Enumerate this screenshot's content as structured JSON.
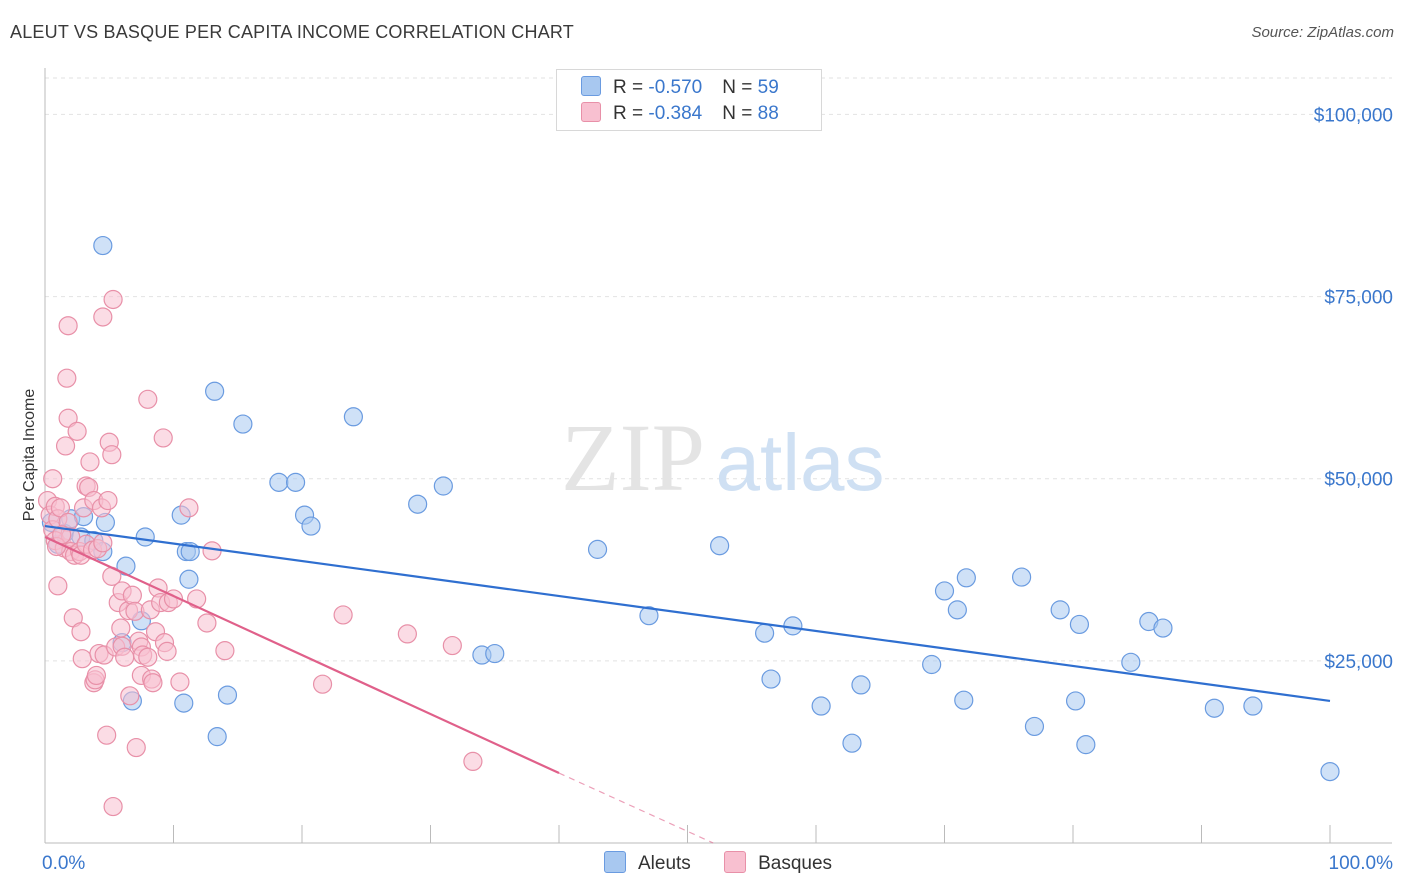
{
  "header": {
    "title": "ALEUT VS BASQUE PER CAPITA INCOME CORRELATION CHART",
    "source": "Source: ZipAtlas.com"
  },
  "watermark": {
    "zip": "ZIP",
    "atlas": "atlas"
  },
  "legend": {
    "rows": [
      {
        "r_label": "R = ",
        "r_value": "-0.570",
        "n_label": "N = ",
        "n_value": "59",
        "color": "#a8c8f0",
        "border": "#6a9be0"
      },
      {
        "r_label": "R = ",
        "r_value": "-0.384",
        "n_label": "N = ",
        "n_value": "88",
        "color": "#f8c0d0",
        "border": "#e890a8"
      }
    ]
  },
  "bottom_legend": [
    {
      "label": "Aleuts",
      "color": "#a8c8f0",
      "border": "#6a9be0"
    },
    {
      "label": "Basques",
      "color": "#f8c0d0",
      "border": "#e890a8"
    }
  ],
  "chart_data": {
    "type": "scatter",
    "ylabel": "Per Capita Income",
    "xlim": [
      0,
      100
    ],
    "ylim": [
      0,
      105000
    ],
    "x_tick_labels": [
      "0.0%",
      "100.0%"
    ],
    "y_ticks": [
      {
        "value": 25000,
        "label": "$25,000"
      },
      {
        "value": 50000,
        "label": "$50,000"
      },
      {
        "value": 75000,
        "label": "$75,000"
      },
      {
        "value": 100000,
        "label": "$100,000"
      }
    ],
    "grid": true,
    "series": [
      {
        "name": "Aleuts",
        "color": "#a8c8f0",
        "stroke": "#6a9be0",
        "line_color": "#2f6fd0",
        "trend": {
          "x0": 0,
          "y0": 43500,
          "x1": 100,
          "y1": 19500
        },
        "points": [
          [
            0.5,
            44000
          ],
          [
            1.0,
            41000
          ],
          [
            1.5,
            42500
          ],
          [
            2.0,
            44500
          ],
          [
            2.8,
            42000
          ],
          [
            3.0,
            44800
          ],
          [
            3.8,
            41500
          ],
          [
            4.5,
            40000
          ],
          [
            4.5,
            82000
          ],
          [
            4.7,
            44000
          ],
          [
            6.0,
            27500
          ],
          [
            6.3,
            38000
          ],
          [
            6.8,
            19500
          ],
          [
            7.5,
            30500
          ],
          [
            7.8,
            42000
          ],
          [
            10.6,
            45000
          ],
          [
            10.8,
            19200
          ],
          [
            11.0,
            40000
          ],
          [
            11.3,
            40000
          ],
          [
            11.2,
            36200
          ],
          [
            13.2,
            62000
          ],
          [
            14.2,
            20300
          ],
          [
            13.4,
            14600
          ],
          [
            15.4,
            57500
          ],
          [
            18.2,
            49500
          ],
          [
            19.5,
            49500
          ],
          [
            20.2,
            45000
          ],
          [
            20.7,
            43500
          ],
          [
            24.0,
            58500
          ],
          [
            29.0,
            46500
          ],
          [
            31.0,
            49000
          ],
          [
            34.0,
            25800
          ],
          [
            35.0,
            26000
          ],
          [
            43.0,
            40300
          ],
          [
            47.0,
            31200
          ],
          [
            52.5,
            40800
          ],
          [
            56.0,
            28800
          ],
          [
            56.5,
            22500
          ],
          [
            58.2,
            29800
          ],
          [
            60.4,
            18800
          ],
          [
            62.8,
            13700
          ],
          [
            63.5,
            21700
          ],
          [
            69.0,
            24500
          ],
          [
            70.0,
            34600
          ],
          [
            71.0,
            32000
          ],
          [
            71.5,
            19600
          ],
          [
            71.7,
            36400
          ],
          [
            76.0,
            36500
          ],
          [
            77.0,
            16000
          ],
          [
            79.0,
            32000
          ],
          [
            80.2,
            19500
          ],
          [
            80.5,
            30000
          ],
          [
            81.0,
            13500
          ],
          [
            84.5,
            24800
          ],
          [
            85.9,
            30400
          ],
          [
            87.0,
            29500
          ],
          [
            91.0,
            18500
          ],
          [
            94.0,
            18800
          ],
          [
            100.0,
            9800
          ]
        ]
      },
      {
        "name": "Basques",
        "color": "#f8c0d0",
        "stroke": "#e890a8",
        "line_color": "#e0608a",
        "trend": {
          "x0": 0,
          "y0": 42000,
          "x1": 40,
          "y1": 9600
        },
        "trend_dashed": {
          "x0": 40,
          "y0": 9600,
          "x1": 52,
          "y1": 0
        },
        "points": [
          [
            0.2,
            47000
          ],
          [
            0.4,
            45000
          ],
          [
            0.6,
            43000
          ],
          [
            0.6,
            50000
          ],
          [
            0.8,
            46200
          ],
          [
            0.8,
            41500
          ],
          [
            1.0,
            35300
          ],
          [
            1.0,
            44500
          ],
          [
            1.2,
            46000
          ],
          [
            1.5,
            40500
          ],
          [
            1.6,
            54500
          ],
          [
            1.7,
            63800
          ],
          [
            1.8,
            58300
          ],
          [
            1.8,
            71000
          ],
          [
            1.8,
            44000
          ],
          [
            2.0,
            42000
          ],
          [
            2.0,
            40000
          ],
          [
            2.2,
            30900
          ],
          [
            2.3,
            39500
          ],
          [
            2.5,
            56500
          ],
          [
            2.7,
            40000
          ],
          [
            2.8,
            39500
          ],
          [
            2.8,
            29000
          ],
          [
            2.9,
            25300
          ],
          [
            3.0,
            46000
          ],
          [
            3.2,
            49000
          ],
          [
            3.2,
            41000
          ],
          [
            3.4,
            48800
          ],
          [
            3.5,
            52300
          ],
          [
            3.7,
            40200
          ],
          [
            3.8,
            47000
          ],
          [
            3.8,
            22000
          ],
          [
            3.9,
            22400
          ],
          [
            4.0,
            23000
          ],
          [
            4.1,
            40400
          ],
          [
            4.2,
            26000
          ],
          [
            4.4,
            46000
          ],
          [
            4.5,
            72200
          ],
          [
            4.5,
            41200
          ],
          [
            4.6,
            25800
          ],
          [
            4.8,
            14800
          ],
          [
            4.9,
            47000
          ],
          [
            5.0,
            55000
          ],
          [
            5.2,
            53300
          ],
          [
            5.2,
            36600
          ],
          [
            5.3,
            5000
          ],
          [
            5.3,
            74600
          ],
          [
            5.5,
            26900
          ],
          [
            5.7,
            33000
          ],
          [
            5.9,
            29500
          ],
          [
            6.0,
            34600
          ],
          [
            6.0,
            27000
          ],
          [
            6.2,
            25500
          ],
          [
            6.5,
            31900
          ],
          [
            6.6,
            20200
          ],
          [
            6.8,
            34000
          ],
          [
            7.0,
            31800
          ],
          [
            7.1,
            13100
          ],
          [
            7.3,
            27700
          ],
          [
            7.5,
            26900
          ],
          [
            7.5,
            23000
          ],
          [
            7.6,
            25800
          ],
          [
            8.0,
            60900
          ],
          [
            8.0,
            25500
          ],
          [
            8.2,
            32000
          ],
          [
            8.3,
            22500
          ],
          [
            8.4,
            22000
          ],
          [
            8.6,
            29000
          ],
          [
            8.8,
            35000
          ],
          [
            9.0,
            33000
          ],
          [
            9.2,
            55600
          ],
          [
            9.3,
            27500
          ],
          [
            9.5,
            26300
          ],
          [
            9.6,
            33000
          ],
          [
            10.0,
            33500
          ],
          [
            10.5,
            22100
          ],
          [
            11.2,
            46000
          ],
          [
            11.8,
            33500
          ],
          [
            12.6,
            30200
          ],
          [
            13.0,
            40100
          ],
          [
            14.0,
            26400
          ],
          [
            21.6,
            21800
          ],
          [
            23.2,
            31300
          ],
          [
            28.2,
            28700
          ],
          [
            31.7,
            27100
          ],
          [
            33.3,
            11200
          ],
          [
            0.9,
            40700
          ],
          [
            1.3,
            42300
          ]
        ]
      }
    ]
  }
}
